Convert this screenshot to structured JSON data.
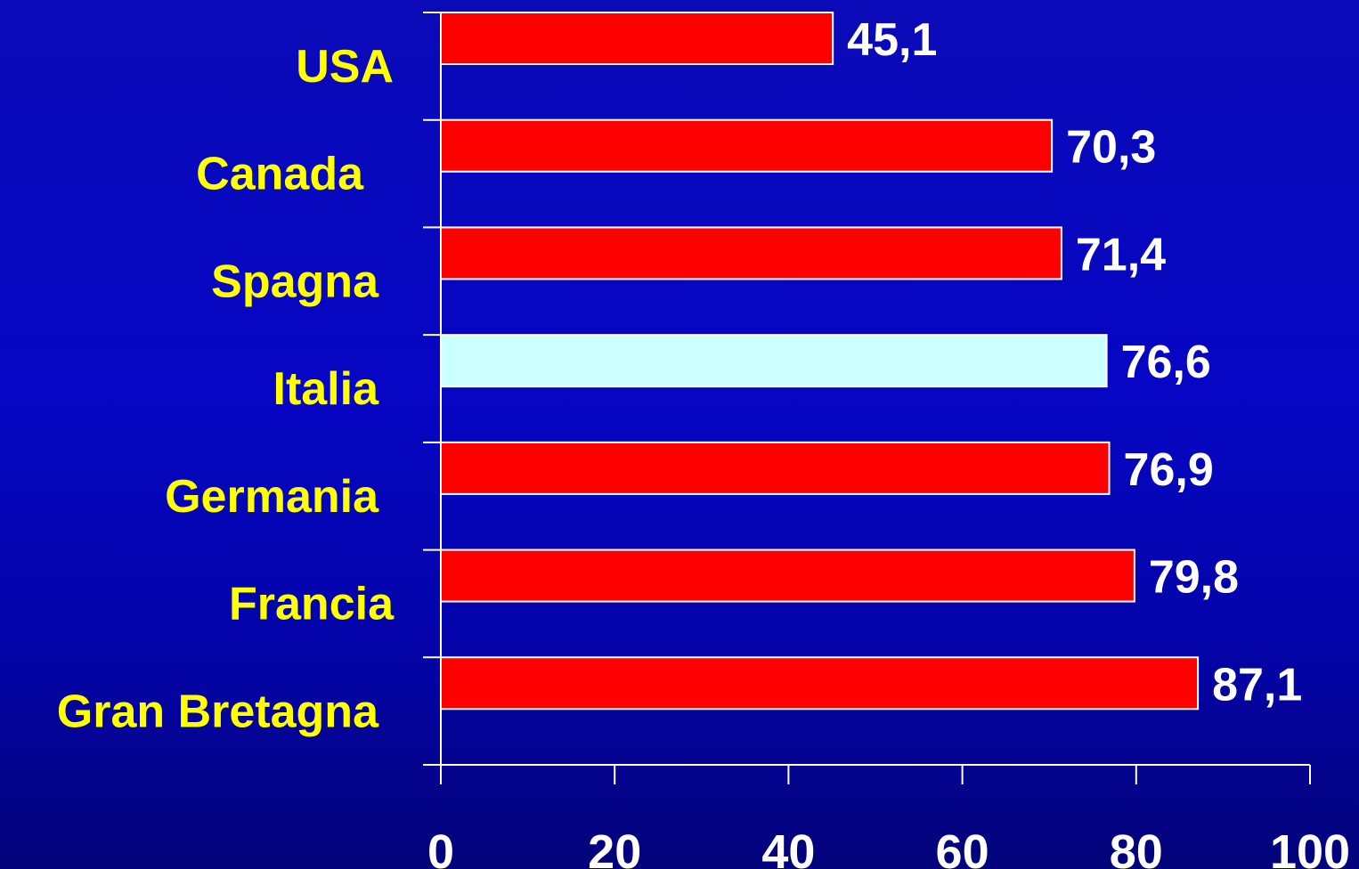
{
  "chart_data": {
    "type": "bar",
    "orientation": "horizontal",
    "categories": [
      "USA",
      "Canada",
      "Spagna",
      "Italia",
      "Germania",
      "Francia",
      "Gran Bretagna"
    ],
    "values": [
      45.1,
      70.3,
      71.4,
      76.6,
      76.9,
      79.8,
      87.1
    ],
    "value_labels": [
      "45,1",
      "70,3",
      "71,4",
      "76,6",
      "76,9",
      "79,8",
      "87,1"
    ],
    "highlight": "Italia",
    "xlim": [
      0,
      100
    ],
    "xticks": [
      0,
      20,
      40,
      60,
      80,
      100
    ],
    "grid": false,
    "legend": "none",
    "colors": {
      "bar": "#ff0000",
      "highlight_bar": "#ccffff",
      "category_label": "#ffff00",
      "value_label": "#ffffff",
      "axis": "#ffffff"
    }
  }
}
